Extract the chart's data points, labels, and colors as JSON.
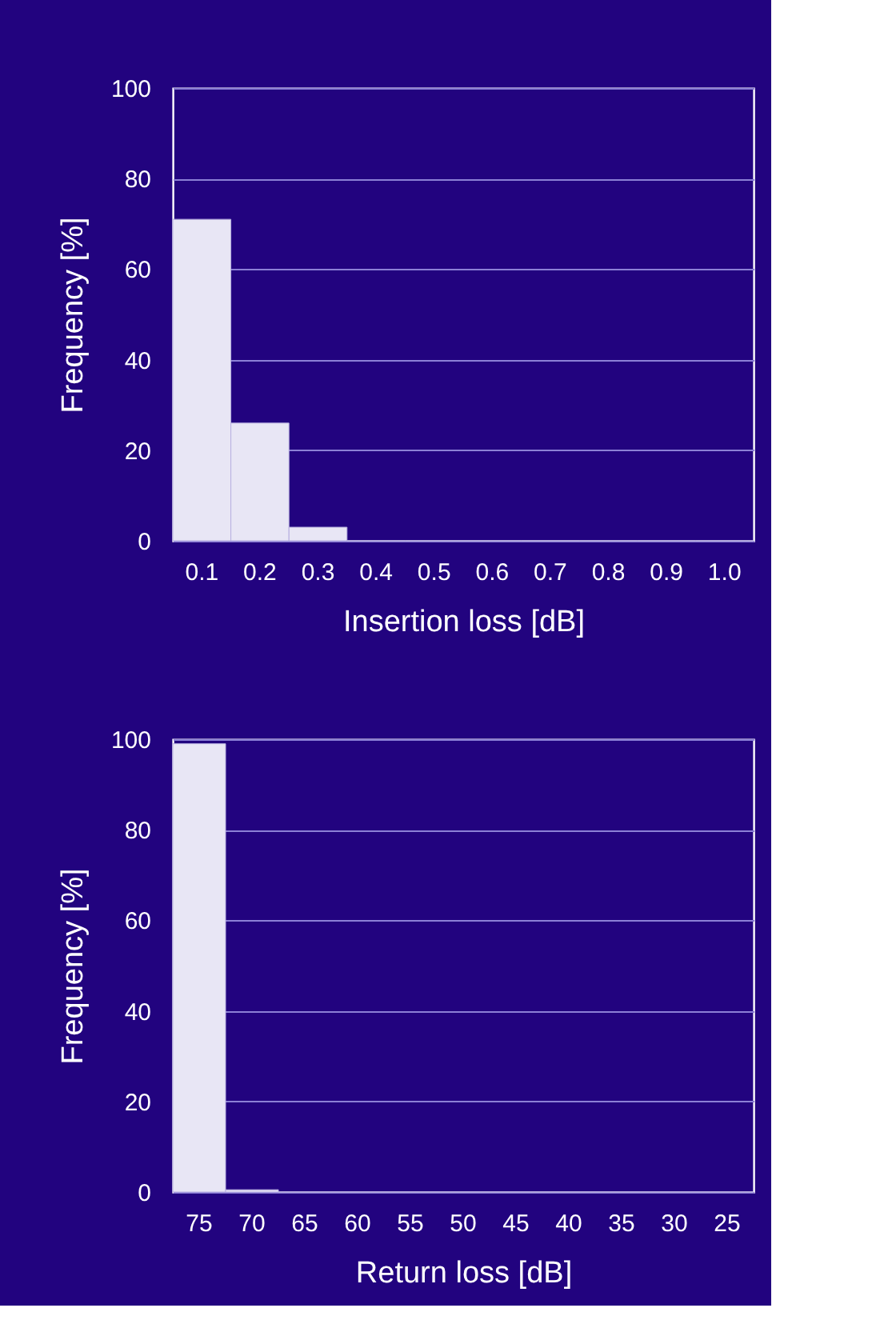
{
  "chart_data": [
    {
      "type": "bar",
      "xlabel": "Insertion loss  [dB]",
      "ylabel": "Frequency [%]",
      "categories": [
        "0.1",
        "0.2",
        "0.3",
        "0.4",
        "0.5",
        "0.6",
        "0.7",
        "0.8",
        "0.9",
        "1.0"
      ],
      "values": [
        71,
        26,
        3,
        0,
        0,
        0,
        0,
        0,
        0,
        0
      ],
      "color": "#e8e6f5",
      "ylim": [
        0,
        100
      ],
      "yticks": [
        0,
        20,
        40,
        60,
        80,
        100
      ],
      "grid": "y"
    },
    {
      "type": "bar",
      "xlabel": "Return loss  [dB]",
      "ylabel": "Frequency [%]",
      "categories": [
        "75",
        "70",
        "65",
        "60",
        "55",
        "50",
        "45",
        "40",
        "35",
        "30",
        "25"
      ],
      "values": [
        99,
        0.5,
        0,
        0,
        0,
        0,
        0,
        0,
        0,
        0,
        0
      ],
      "color": "#e8e6f5",
      "ylim": [
        0,
        100
      ],
      "yticks": [
        0,
        20,
        40,
        60,
        80,
        100
      ],
      "grid": "y"
    }
  ]
}
